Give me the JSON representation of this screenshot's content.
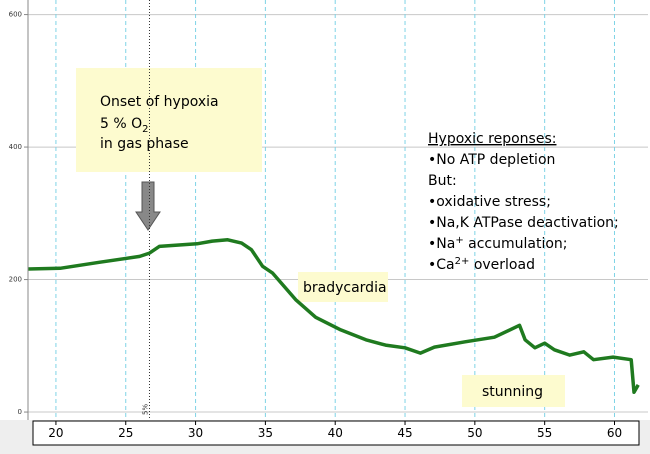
{
  "chart_data": {
    "type": "line",
    "x": [
      18,
      20.3,
      23.1,
      26,
      26.7,
      27.4,
      30.1,
      31.2,
      32.3,
      33.3,
      34,
      34.8,
      35.5,
      37.2,
      38.6,
      40.4,
      42.2,
      43.6,
      45,
      46.1,
      47.1,
      49.3,
      51.4,
      53.2,
      53.6,
      54.3,
      55,
      55.7,
      56.8,
      57.8,
      58.5,
      59.9,
      61.2,
      61.4,
      61.7
    ],
    "series": [
      {
        "color": "#1f7a1f",
        "values": [
          216,
          217,
          226,
          235,
          240,
          250,
          254,
          258,
          260,
          255,
          245,
          220,
          210,
          169,
          143,
          124,
          109,
          101,
          97,
          89,
          98,
          106,
          113,
          131,
          109,
          97,
          104,
          94,
          86,
          91,
          79,
          83,
          79,
          30,
          41
        ]
      }
    ],
    "xlim": [
      18,
      62.4
    ],
    "ylim": [
      -12,
      622
    ],
    "xticks": [
      20,
      25,
      30,
      35,
      40,
      45,
      50,
      55,
      60
    ],
    "yticks": [
      0,
      200,
      400,
      600
    ],
    "grid": true,
    "marker": {
      "x": 26.7,
      "label": "5%"
    },
    "onset_note": {
      "line1": "Onset of hypoxia",
      "line2": "5 % O",
      "line2_sub": "2",
      "line3": "in gas phase"
    },
    "responses": {
      "heading": "Hypoxic reponses:",
      "item1": "•No ATP depletion",
      "item2": "But:",
      "item3": "•oxidative stress;",
      "item4": "•Na,K ATPase deactivation;",
      "item5_a": "•Na",
      "item5_sup": "+",
      "item5_b": " accumulation;",
      "item6_a": "•Ca",
      "item6_sup": "2+",
      "item6_b": " overload"
    },
    "bradycardia": "bradycardia",
    "stunning": "stunning"
  }
}
